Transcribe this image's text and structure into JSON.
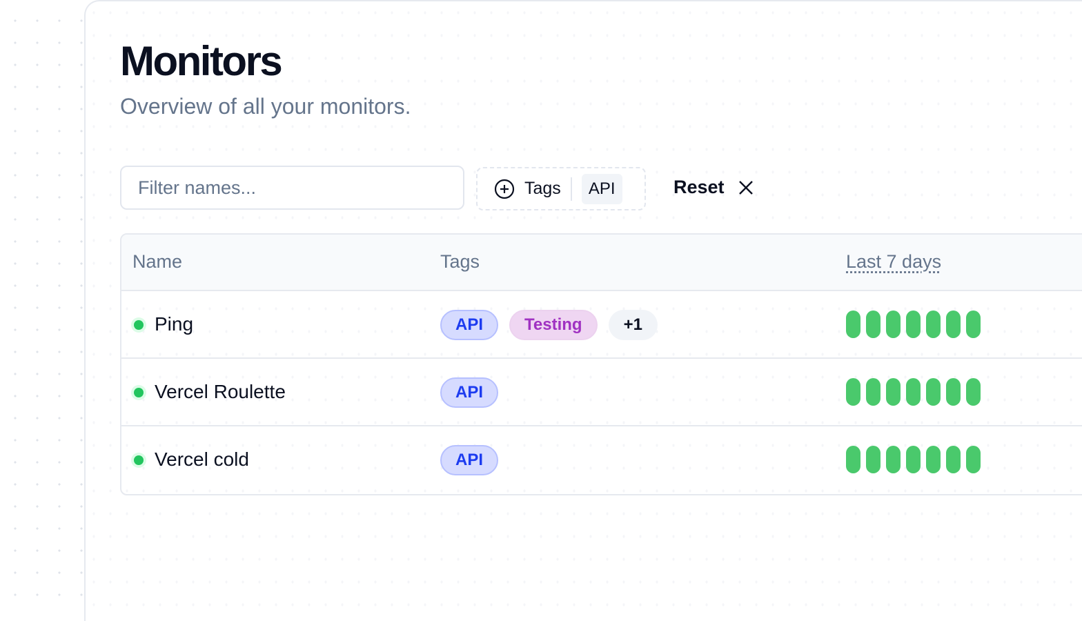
{
  "page": {
    "title": "Monitors",
    "subtitle": "Overview of all your monitors."
  },
  "filters": {
    "name_placeholder": "Filter names...",
    "tags_label": "Tags",
    "selected_tag": "API",
    "reset_label": "Reset"
  },
  "table": {
    "columns": [
      "Name",
      "Tags",
      "Last 7 days"
    ],
    "rows": [
      {
        "name": "Ping",
        "status": "up",
        "tags": [
          "API",
          "Testing"
        ],
        "more": "+1",
        "days": [
          "up",
          "up",
          "up",
          "up",
          "up",
          "up",
          "up"
        ]
      },
      {
        "name": "Vercel Roulette",
        "status": "up",
        "tags": [
          "API"
        ],
        "days": [
          "up",
          "up",
          "up",
          "up",
          "up",
          "up",
          "up"
        ]
      },
      {
        "name": "Vercel cold",
        "status": "up",
        "tags": [
          "API"
        ],
        "days": [
          "up",
          "up",
          "up",
          "up",
          "up",
          "up",
          "up"
        ]
      }
    ]
  },
  "colors": {
    "up": "#4ac96c",
    "api_tag": "#1d3cf0",
    "testing_tag": "#a032c2"
  }
}
